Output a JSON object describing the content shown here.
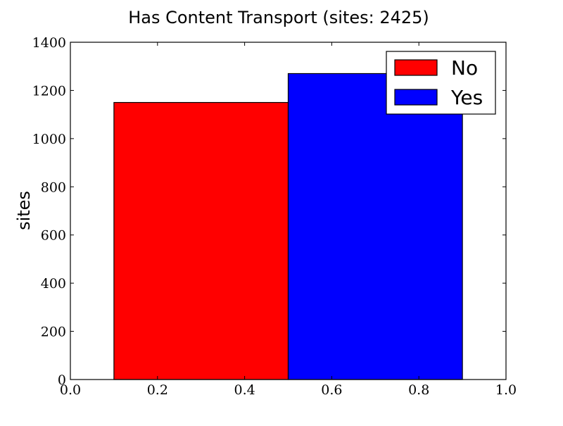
{
  "chart_data": {
    "type": "bar",
    "title": "Has Content Transport (sites: 2425)",
    "xlabel": "",
    "ylabel": "sites",
    "xlim": [
      0.0,
      1.0
    ],
    "ylim": [
      0,
      1400
    ],
    "grid": false,
    "legend_position": "top-right",
    "x_ticks": [
      "0.0",
      "0.2",
      "0.4",
      "0.6",
      "0.8",
      "1.0"
    ],
    "y_ticks": [
      "0",
      "200",
      "400",
      "600",
      "800",
      "1000",
      "1200",
      "1400"
    ],
    "series": [
      {
        "name": "No",
        "x_start": 0.1,
        "x_end": 0.5,
        "value": 1150,
        "color": "#ff0000"
      },
      {
        "name": "Yes",
        "x_start": 0.5,
        "x_end": 0.9,
        "value": 1270,
        "color": "#0000ff"
      }
    ]
  }
}
